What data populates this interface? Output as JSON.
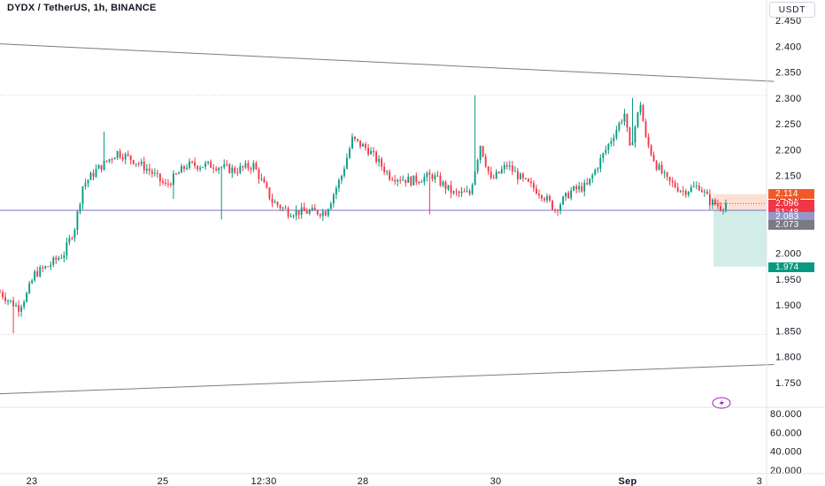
{
  "header": {
    "title": "DYDX / TetherUS, 1h, BINANCE",
    "currency": "USDT"
  },
  "chart_data": [
    {
      "type": "candlestick",
      "title": "DYDX / TetherUS, 1h, BINANCE",
      "y_axis_ticks": [
        "2.450",
        "2.400",
        "2.350",
        "2.300",
        "2.250",
        "2.200",
        "2.150",
        "2.100",
        "2.050",
        "2.000",
        "1.950",
        "1.900",
        "1.850",
        "1.800",
        "1.750"
      ],
      "ylim": [
        1.73,
        2.465
      ],
      "x_axis_ticks": [
        "23",
        "25",
        "12:30",
        "28",
        "30",
        "Sep",
        "3"
      ],
      "grid": false,
      "key_points": [
        {
          "t": 0,
          "v": 1.925
        },
        {
          "t": 3,
          "v": 1.91
        },
        {
          "t": 7,
          "v": 1.895
        },
        {
          "t": 10,
          "v": 1.92
        },
        {
          "t": 13,
          "v": 1.96
        },
        {
          "t": 18,
          "v": 1.975
        },
        {
          "t": 24,
          "v": 2.0
        },
        {
          "t": 28,
          "v": 2.05
        },
        {
          "t": 31,
          "v": 2.13
        },
        {
          "t": 36,
          "v": 2.16
        },
        {
          "t": 44,
          "v": 2.195
        },
        {
          "t": 50,
          "v": 2.18
        },
        {
          "t": 56,
          "v": 2.16
        },
        {
          "t": 62,
          "v": 2.13
        },
        {
          "t": 70,
          "v": 2.17
        },
        {
          "t": 80,
          "v": 2.17
        },
        {
          "t": 88,
          "v": 2.16
        },
        {
          "t": 95,
          "v": 2.17
        },
        {
          "t": 102,
          "v": 2.1
        },
        {
          "t": 108,
          "v": 2.08
        },
        {
          "t": 114,
          "v": 2.08
        },
        {
          "t": 122,
          "v": 2.08
        },
        {
          "t": 128,
          "v": 2.15
        },
        {
          "t": 132,
          "v": 2.22
        },
        {
          "t": 138,
          "v": 2.2
        },
        {
          "t": 146,
          "v": 2.15
        },
        {
          "t": 154,
          "v": 2.14
        },
        {
          "t": 162,
          "v": 2.15
        },
        {
          "t": 170,
          "v": 2.115
        },
        {
          "t": 176,
          "v": 2.115
        },
        {
          "t": 180,
          "v": 2.21
        },
        {
          "t": 184,
          "v": 2.14
        },
        {
          "t": 190,
          "v": 2.17
        },
        {
          "t": 196,
          "v": 2.14
        },
        {
          "t": 203,
          "v": 2.115
        },
        {
          "t": 208,
          "v": 2.085
        },
        {
          "t": 214,
          "v": 2.12
        },
        {
          "t": 220,
          "v": 2.13
        },
        {
          "t": 224,
          "v": 2.17
        },
        {
          "t": 230,
          "v": 2.23
        },
        {
          "t": 234,
          "v": 2.27
        },
        {
          "t": 236,
          "v": 2.2
        },
        {
          "t": 240,
          "v": 2.29
        },
        {
          "t": 242,
          "v": 2.22
        },
        {
          "t": 246,
          "v": 2.17
        },
        {
          "t": 250,
          "v": 2.14
        },
        {
          "t": 256,
          "v": 2.12
        },
        {
          "t": 262,
          "v": 2.13
        },
        {
          "t": 266,
          "v": 2.1
        },
        {
          "t": 270,
          "v": 2.09
        },
        {
          "t": 272,
          "v": 2.096
        }
      ],
      "indicator_axis_ticks": [
        "80.000",
        "60.000",
        "40.000",
        "20.000"
      ],
      "indicator_ylim": [
        15,
        90
      ],
      "position": {
        "entry": 2.083,
        "stop": 2.114,
        "target": 1.974
      },
      "horizontal_levels": [
        2.305,
        1.843,
        2.083
      ],
      "trend_lines": [
        {
          "from": {
            "t": -2,
            "v": 2.405
          },
          "to": {
            "t": 290,
            "v": 2.332
          }
        },
        {
          "from": {
            "t": -2,
            "v": 1.728
          },
          "to": {
            "t": 290,
            "v": 1.785
          }
        }
      ]
    }
  ],
  "price_tags": [
    {
      "label": "2.114",
      "color": "#ef5a28"
    },
    {
      "label": "2.096",
      "sub": "51:48",
      "color": "#f23645"
    },
    {
      "label": "2.083",
      "color": "#9598c8"
    },
    {
      "label": "2.073",
      "color": "#787b86"
    },
    {
      "label": "1.974",
      "color": "#089981"
    }
  ],
  "icons": {
    "rsi-marker": "lightning-icon"
  }
}
